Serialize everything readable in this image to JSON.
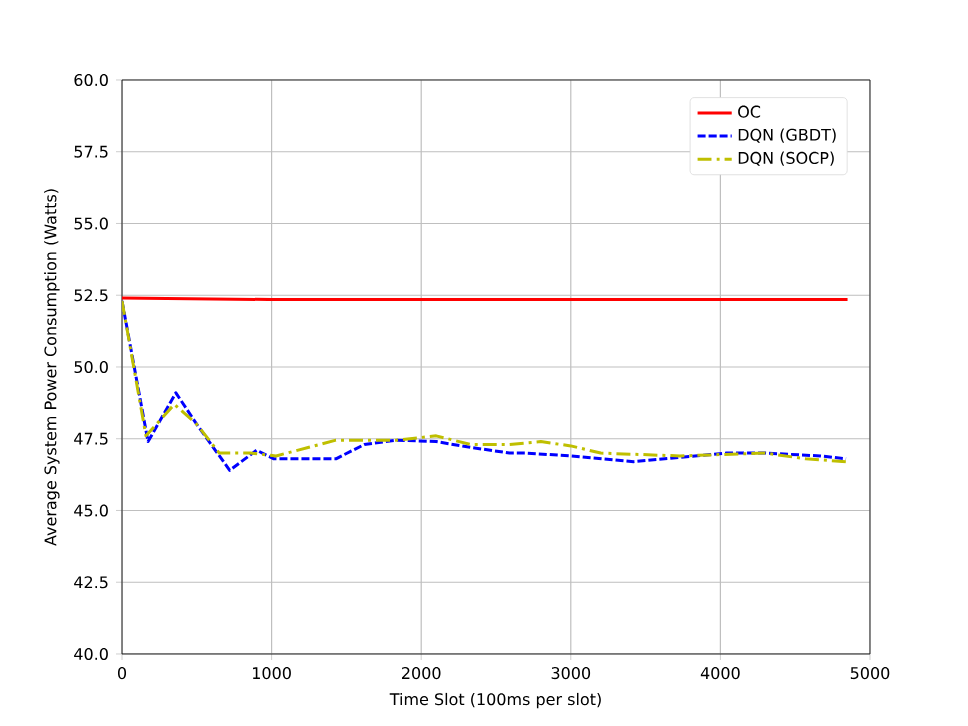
{
  "chart_data": {
    "type": "line",
    "xlabel": "Time Slot (100ms per slot)",
    "ylabel": "Average System Power Consumption (Watts)",
    "xlim": [
      0,
      5000
    ],
    "ylim": [
      40,
      60
    ],
    "xticks": [
      0,
      1000,
      2000,
      3000,
      4000,
      5000
    ],
    "yticks": [
      {
        "value": 40,
        "label": "40.0"
      },
      {
        "value": 42.5,
        "label": "42.5"
      },
      {
        "value": 45,
        "label": "45.0"
      },
      {
        "value": 47.5,
        "label": "47.5"
      },
      {
        "value": 50,
        "label": "50.0"
      },
      {
        "value": 52.5,
        "label": "52.5"
      },
      {
        "value": 55,
        "label": "55.0"
      },
      {
        "value": 57.5,
        "label": "57.5"
      },
      {
        "value": 60,
        "label": "60.0"
      }
    ],
    "grid": true,
    "legend": "top right",
    "series": [
      {
        "name": "OC",
        "color": "#ff0000",
        "line_style": "solid",
        "x": [
          0,
          1000,
          2000,
          3000,
          4000,
          4850
        ],
        "values": [
          52.4,
          52.35,
          52.35,
          52.35,
          52.35,
          52.35
        ]
      },
      {
        "name": "DQN (GBDT)",
        "color": "#0000ff",
        "line_style": "dashed",
        "x": [
          0,
          174,
          360,
          500,
          720,
          900,
          1015,
          1430,
          1620,
          1830,
          2100,
          2330,
          2590,
          2700,
          3000,
          3420,
          4040,
          4300,
          4670,
          4840
        ],
        "values": [
          52.3,
          47.4,
          49.1,
          48.0,
          46.4,
          47.1,
          46.8,
          46.8,
          47.3,
          47.45,
          47.4,
          47.2,
          47.0,
          47.0,
          46.9,
          46.7,
          47.0,
          47.0,
          46.9,
          46.8
        ]
      },
      {
        "name": "DQN (SOCP)",
        "color": "#bfbf00",
        "line_style": "dashdot",
        "x": [
          0,
          160,
          350,
          500,
          650,
          860,
          1030,
          1430,
          1830,
          2100,
          2330,
          2590,
          2800,
          3000,
          3200,
          3730,
          4300,
          4570,
          4840
        ],
        "values": [
          52.3,
          47.6,
          48.7,
          48.0,
          47.0,
          47.0,
          46.9,
          47.45,
          47.45,
          47.6,
          47.3,
          47.3,
          47.4,
          47.25,
          47.0,
          46.9,
          47.0,
          46.8,
          46.7
        ]
      }
    ]
  }
}
